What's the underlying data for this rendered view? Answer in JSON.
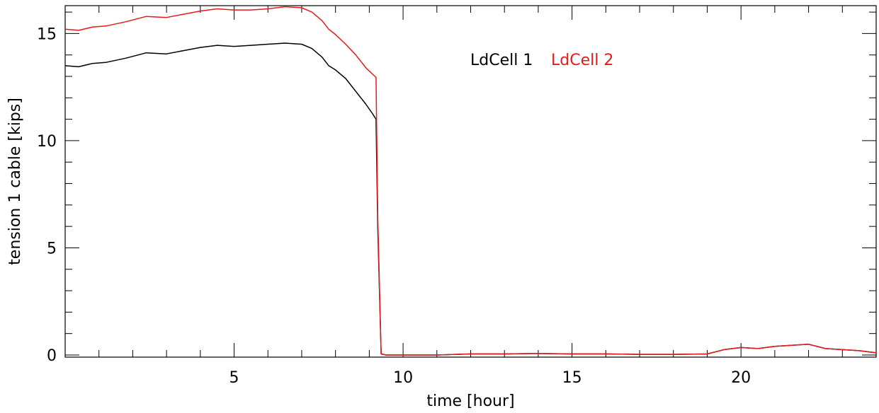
{
  "chart_data": {
    "type": "line",
    "xlabel": "time [hour]",
    "ylabel": "tension 1 cable [kips]",
    "xlim": [
      0,
      24
    ],
    "ylim": [
      -0.1,
      16.3
    ],
    "xticks": [
      5,
      10,
      15,
      20
    ],
    "yticks": [
      0,
      5,
      10,
      15
    ],
    "x_minor_step": 1,
    "y_minor_step": 1,
    "grid": false,
    "legend_placement": "top-center",
    "series": [
      {
        "name": "LdCell 1",
        "color": "#000000",
        "x": [
          0,
          0.4,
          0.8,
          1.2,
          1.8,
          2.4,
          3.0,
          3.5,
          4.0,
          4.5,
          5.0,
          5.5,
          6.0,
          6.5,
          7.0,
          7.3,
          7.6,
          7.8,
          8.0,
          8.3,
          8.6,
          8.9,
          9.1,
          9.2,
          9.25,
          9.35,
          9.5,
          10,
          11,
          12,
          13,
          14,
          15,
          16,
          17,
          18,
          19,
          19.5,
          20,
          20.5,
          21,
          21.5,
          22,
          22.5,
          23,
          23.5,
          24
        ],
        "values": [
          13.5,
          13.45,
          13.6,
          13.65,
          13.85,
          14.1,
          14.05,
          14.2,
          14.35,
          14.45,
          14.4,
          14.45,
          14.5,
          14.55,
          14.5,
          14.3,
          13.9,
          13.5,
          13.3,
          12.9,
          12.3,
          11.7,
          11.25,
          11.0,
          6.0,
          0.05,
          0.0,
          0.0,
          0.0,
          0.05,
          0.05,
          0.07,
          0.05,
          0.05,
          0.03,
          0.03,
          0.05,
          0.25,
          0.35,
          0.3,
          0.4,
          0.45,
          0.5,
          0.3,
          0.25,
          0.2,
          0.1
        ]
      },
      {
        "name": "LdCell 2",
        "color": "#e8191a",
        "x": [
          0,
          0.4,
          0.8,
          1.2,
          1.8,
          2.4,
          3.0,
          3.5,
          4.0,
          4.5,
          5.0,
          5.5,
          6.0,
          6.5,
          7.0,
          7.3,
          7.6,
          7.8,
          8.0,
          8.3,
          8.6,
          8.9,
          9.1,
          9.2,
          9.25,
          9.35,
          9.5,
          10,
          11,
          12,
          13,
          14,
          15,
          16,
          17,
          18,
          19,
          19.5,
          20,
          20.5,
          21,
          21.5,
          22,
          22.5,
          23,
          23.5,
          24
        ],
        "values": [
          15.2,
          15.15,
          15.3,
          15.35,
          15.55,
          15.8,
          15.75,
          15.9,
          16.05,
          16.15,
          16.1,
          16.1,
          16.15,
          16.25,
          16.2,
          16.0,
          15.6,
          15.2,
          14.95,
          14.5,
          14.0,
          13.4,
          13.1,
          12.95,
          6.5,
          0.05,
          0.0,
          0.0,
          0.0,
          0.05,
          0.05,
          0.07,
          0.05,
          0.05,
          0.03,
          0.03,
          0.05,
          0.25,
          0.35,
          0.3,
          0.4,
          0.45,
          0.5,
          0.3,
          0.25,
          0.2,
          0.1
        ]
      }
    ]
  }
}
